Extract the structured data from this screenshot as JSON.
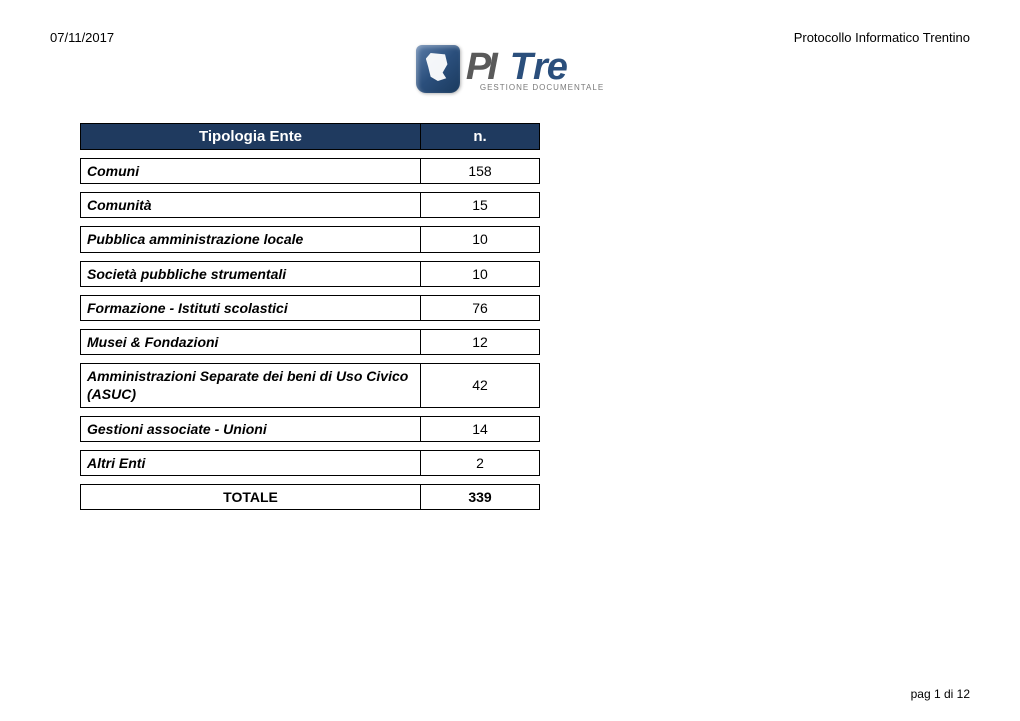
{
  "header": {
    "date": "07/11/2017",
    "title": "Protocollo Informatico Trentino"
  },
  "logo": {
    "main_gray": "PI",
    "main_blue": "Tre",
    "subtitle": "GESTIONE DOCUMENTALE"
  },
  "table": {
    "header_bg": "#1f3a5f",
    "header_text_color": "#ffffff",
    "columns": [
      "Tipologia Ente",
      "n."
    ],
    "rows": [
      {
        "label": "Comuni",
        "value": "158"
      },
      {
        "label": "Comunità",
        "value": "15"
      },
      {
        "label": "Pubblica amministrazione locale",
        "value": "10"
      },
      {
        "label": "Società pubbliche strumentali",
        "value": "10"
      },
      {
        "label": "Formazione - Istituti scolastici",
        "value": "76"
      },
      {
        "label": "Musei & Fondazioni",
        "value": "12"
      },
      {
        "label": "Amministrazioni Separate dei beni di Uso Civico (ASUC)",
        "value": "42"
      },
      {
        "label": "Gestioni associate - Unioni",
        "value": "14"
      },
      {
        "label": "Altri Enti",
        "value": "2"
      }
    ],
    "total": {
      "label": "TOTALE",
      "value": "339"
    }
  },
  "footer": {
    "page": "pag 1 di 12"
  }
}
